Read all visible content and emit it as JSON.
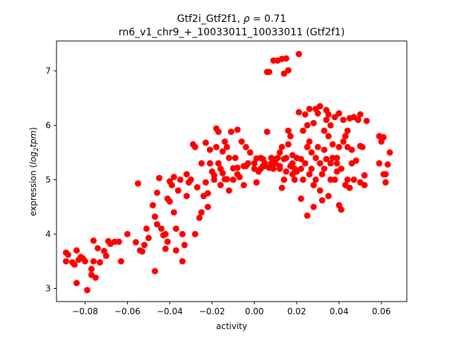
{
  "chart_data": {
    "type": "scatter",
    "title_line1_prefix": "Gtf2i_Gtf2f1, ",
    "title_line1_rho": "ρ",
    "title_line1_suffix": " = 0.71",
    "title_line2": "rn6_v1_chr9_+_10033011_10033011 (Gtf2f1)",
    "xlabel": "activity",
    "ylabel_prefix": "expression (",
    "ylabel_math": "log",
    "ylabel_sub": "2",
    "ylabel_math2": "tpm",
    "ylabel_suffix": ")",
    "xlim": [
      -0.0935,
      0.072
    ],
    "ylim": [
      2.76,
      7.55
    ],
    "xticks": [
      -0.08,
      -0.06,
      -0.04,
      -0.02,
      0.0,
      0.02,
      0.04,
      0.06
    ],
    "xtick_labels": [
      "−0.08",
      "−0.06",
      "−0.04",
      "−0.02",
      "0.00",
      "0.02",
      "0.04",
      "0.06"
    ],
    "yticks": [
      3,
      4,
      5,
      6,
      7
    ],
    "ytick_labels": [
      "3",
      "4",
      "5",
      "6",
      "7"
    ],
    "marker_color": "#ff0000",
    "grid": false,
    "points": [
      [
        -0.089,
        3.66
      ],
      [
        -0.089,
        3.5
      ],
      [
        -0.088,
        3.62
      ],
      [
        -0.086,
        3.48
      ],
      [
        -0.085,
        3.44
      ],
      [
        -0.084,
        3.1
      ],
      [
        -0.084,
        3.7
      ],
      [
        -0.083,
        3.53
      ],
      [
        -0.082,
        3.58
      ],
      [
        -0.081,
        3.55
      ],
      [
        -0.08,
        3.5
      ],
      [
        -0.079,
        2.97
      ],
      [
        -0.077,
        3.25
      ],
      [
        -0.077,
        3.36
      ],
      [
        -0.076,
        3.88
      ],
      [
        -0.076,
        3.5
      ],
      [
        -0.075,
        3.2
      ],
      [
        -0.074,
        3.74
      ],
      [
        -0.073,
        3.48
      ],
      [
        -0.071,
        3.69
      ],
      [
        -0.07,
        3.6
      ],
      [
        -0.069,
        3.87
      ],
      [
        -0.068,
        3.82
      ],
      [
        -0.066,
        3.86
      ],
      [
        -0.064,
        3.86
      ],
      [
        -0.063,
        3.5
      ],
      [
        -0.06,
        4.0
      ],
      [
        -0.056,
        3.85
      ],
      [
        -0.055,
        4.93
      ],
      [
        -0.054,
        3.7
      ],
      [
        -0.053,
        3.68
      ],
      [
        -0.052,
        3.8
      ],
      [
        -0.051,
        4.1
      ],
      [
        -0.05,
        3.93
      ],
      [
        -0.048,
        4.53
      ],
      [
        -0.047,
        4.32
      ],
      [
        -0.047,
        3.32
      ],
      [
        -0.046,
        4.76
      ],
      [
        -0.046,
        4.18
      ],
      [
        -0.045,
        5.03
      ],
      [
        -0.044,
        4.1
      ],
      [
        -0.043,
        3.98
      ],
      [
        -0.042,
        4.0
      ],
      [
        -0.042,
        3.73
      ],
      [
        -0.041,
        4.65
      ],
      [
        -0.041,
        3.86
      ],
      [
        -0.04,
        4.97
      ],
      [
        -0.04,
        4.6
      ],
      [
        -0.039,
        4.9
      ],
      [
        -0.038,
        5.05
      ],
      [
        -0.038,
        4.4
      ],
      [
        -0.037,
        4.1
      ],
      [
        -0.037,
        3.7
      ],
      [
        -0.036,
        4.8
      ],
      [
        -0.035,
        5.0
      ],
      [
        -0.034,
        4.0
      ],
      [
        -0.034,
        3.5
      ],
      [
        -0.033,
        3.8
      ],
      [
        -0.032,
        4.7
      ],
      [
        -0.032,
        5.1
      ],
      [
        -0.031,
        4.95
      ],
      [
        -0.03,
        5.0
      ],
      [
        -0.029,
        5.65
      ],
      [
        -0.028,
        4.0
      ],
      [
        -0.028,
        5.6
      ],
      [
        -0.027,
        4.86
      ],
      [
        -0.026,
        4.3
      ],
      [
        -0.025,
        4.4
      ],
      [
        -0.025,
        5.3
      ],
      [
        -0.024,
        4.7
      ],
      [
        -0.023,
        5.68
      ],
      [
        -0.023,
        4.95
      ],
      [
        -0.022,
        4.75
      ],
      [
        -0.022,
        4.5
      ],
      [
        -0.021,
        5.55
      ],
      [
        -0.02,
        5.15
      ],
      [
        -0.019,
        5.0
      ],
      [
        -0.018,
        5.6
      ],
      [
        -0.018,
        5.94
      ],
      [
        -0.017,
        5.3
      ],
      [
        -0.017,
        5.88
      ],
      [
        -0.016,
        4.9
      ],
      [
        -0.016,
        5.2
      ],
      [
        -0.015,
        5.12
      ],
      [
        -0.014,
        5.7
      ],
      [
        -0.014,
        5.01
      ],
      [
        -0.013,
        5.6
      ],
      [
        -0.012,
        5.4
      ],
      [
        -0.012,
        4.8
      ],
      [
        -0.011,
        5.88
      ],
      [
        -0.01,
        5.0
      ],
      [
        -0.01,
        5.21
      ],
      [
        -0.009,
        5.4
      ],
      [
        -0.008,
        5.1
      ],
      [
        -0.008,
        5.92
      ],
      [
        -0.007,
        5.05
      ],
      [
        -0.006,
        5.7
      ],
      [
        -0.005,
        5.25
      ],
      [
        -0.005,
        4.9
      ],
      [
        -0.004,
        5.6
      ],
      [
        -0.003,
        5.3
      ],
      [
        -0.002,
        5.5
      ],
      [
        0.0,
        5.3
      ],
      [
        0.001,
        4.95
      ],
      [
        0.001,
        5.39
      ],
      [
        0.002,
        5.15
      ],
      [
        0.003,
        5.2
      ],
      [
        0.004,
        5.38
      ],
      [
        0.005,
        5.3
      ],
      [
        0.005,
        5.25
      ],
      [
        0.006,
        6.98
      ],
      [
        0.006,
        5.88
      ],
      [
        0.007,
        5.22
      ],
      [
        0.007,
        6.98
      ],
      [
        0.008,
        5.4
      ],
      [
        0.009,
        5.2
      ],
      [
        0.009,
        7.19
      ],
      [
        0.01,
        5.3
      ],
      [
        0.011,
        5.4
      ],
      [
        0.011,
        7.19
      ],
      [
        0.012,
        5.5
      ],
      [
        0.012,
        5.25
      ],
      [
        0.012,
        5.2
      ],
      [
        0.013,
        7.22
      ],
      [
        0.013,
        4.85
      ],
      [
        0.014,
        5.0
      ],
      [
        0.014,
        6.95
      ],
      [
        0.014,
        5.38
      ],
      [
        0.015,
        5.4
      ],
      [
        0.015,
        7.23
      ],
      [
        0.016,
        5.65
      ],
      [
        0.016,
        7.01
      ],
      [
        0.016,
        5.9
      ],
      [
        0.017,
        5.25
      ],
      [
        0.017,
        5.8
      ],
      [
        0.018,
        5.1
      ],
      [
        0.018,
        5.3
      ],
      [
        0.019,
        5.2
      ],
      [
        0.019,
        5.0
      ],
      [
        0.02,
        5.4
      ],
      [
        0.02,
        5.15
      ],
      [
        0.021,
        7.31
      ],
      [
        0.021,
        6.24
      ],
      [
        0.022,
        4.65
      ],
      [
        0.022,
        5.38
      ],
      [
        0.023,
        5.0
      ],
      [
        0.023,
        5.9
      ],
      [
        0.024,
        5.3
      ],
      [
        0.024,
        6.2
      ],
      [
        0.025,
        5.6
      ],
      [
        0.025,
        6.0
      ],
      [
        0.025,
        4.34
      ],
      [
        0.026,
        5.7
      ],
      [
        0.026,
        6.3
      ],
      [
        0.027,
        5.5
      ],
      [
        0.027,
        5.2
      ],
      [
        0.028,
        4.9
      ],
      [
        0.028,
        4.5
      ],
      [
        0.028,
        6.04
      ],
      [
        0.029,
        5.4
      ],
      [
        0.029,
        6.3
      ],
      [
        0.03,
        6.22
      ],
      [
        0.03,
        5.6
      ],
      [
        0.031,
        5.3
      ],
      [
        0.031,
        4.8
      ],
      [
        0.031,
        6.35
      ],
      [
        0.032,
        4.62
      ],
      [
        0.032,
        5.1
      ],
      [
        0.033,
        5.9
      ],
      [
        0.033,
        5.55
      ],
      [
        0.034,
        5.38
      ],
      [
        0.034,
        6.1
      ],
      [
        0.034,
        6.28
      ],
      [
        0.035,
        4.7
      ],
      [
        0.035,
        5.8
      ],
      [
        0.035,
        6.2
      ],
      [
        0.036,
        5.0
      ],
      [
        0.036,
        6.0
      ],
      [
        0.037,
        5.4
      ],
      [
        0.037,
        5.65
      ],
      [
        0.038,
        5.0
      ],
      [
        0.038,
        6.15
      ],
      [
        0.039,
        5.3
      ],
      [
        0.039,
        5.15
      ],
      [
        0.04,
        4.53
      ],
      [
        0.04,
        5.6
      ],
      [
        0.04,
        6.22
      ],
      [
        0.041,
        4.45
      ],
      [
        0.041,
        5.2
      ],
      [
        0.042,
        5.7
      ],
      [
        0.042,
        6.1
      ],
      [
        0.043,
        4.9
      ],
      [
        0.043,
        5.8
      ],
      [
        0.044,
        5.9
      ],
      [
        0.044,
        5.6
      ],
      [
        0.045,
        4.85
      ],
      [
        0.045,
        6.13
      ],
      [
        0.046,
        5.3
      ],
      [
        0.046,
        5.55
      ],
      [
        0.047,
        6.15
      ],
      [
        0.047,
        5.0
      ],
      [
        0.048,
        5.35
      ],
      [
        0.049,
        6.1
      ],
      [
        0.05,
        4.95
      ],
      [
        0.05,
        5.62
      ],
      [
        0.05,
        6.2
      ],
      [
        0.051,
        5.6
      ],
      [
        0.052,
        4.9
      ],
      [
        0.052,
        5.08
      ],
      [
        0.053,
        6.08
      ],
      [
        0.059,
        5.3
      ],
      [
        0.059,
        5.8
      ],
      [
        0.06,
        5.7
      ],
      [
        0.061,
        5.1
      ],
      [
        0.061,
        5.78
      ],
      [
        0.062,
        4.95
      ],
      [
        0.062,
        5.1
      ],
      [
        0.063,
        5.28
      ],
      [
        0.064,
        5.5
      ],
      [
        -0.013,
        5.01
      ],
      [
        0.003,
        5.4
      ],
      [
        0.008,
        5.3
      ],
      [
        0.01,
        5.38
      ],
      [
        0.013,
        5.6
      ],
      [
        0.018,
        5.45
      ],
      [
        0.022,
        5.2
      ],
      [
        0.026,
        5.1
      ],
      [
        0.029,
        5.0
      ],
      [
        0.033,
        5.2
      ],
      [
        0.036,
        5.3
      ],
      [
        0.039,
        5.4
      ],
      [
        0.044,
        5.0
      ],
      [
        -0.021,
        5.3
      ],
      [
        -0.019,
        5.08
      ],
      [
        -0.015,
        5.52
      ],
      [
        -0.008,
        5.22
      ],
      [
        -0.004,
        5.25
      ],
      [
        0.0,
        5.2
      ],
      [
        0.004,
        5.25
      ],
      [
        0.015,
        5.15
      ]
    ]
  }
}
